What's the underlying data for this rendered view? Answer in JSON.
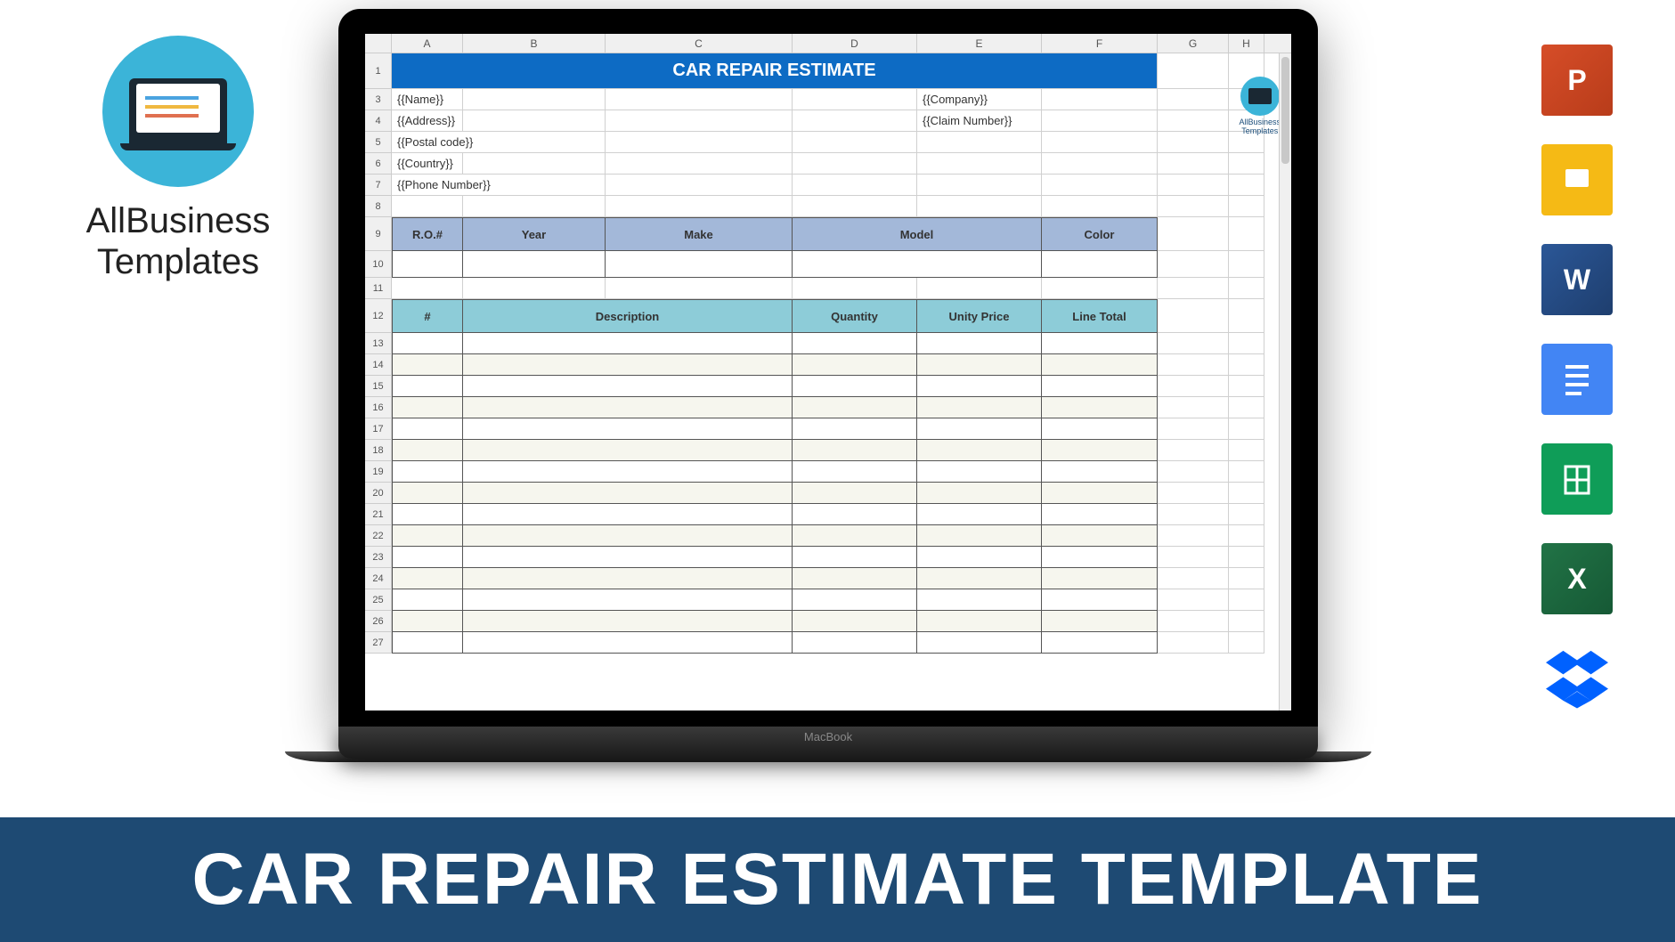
{
  "logo": {
    "line1": "AllBusiness",
    "line2": "Templates"
  },
  "appIcons": {
    "ppt": "P",
    "slides": "",
    "word": "W",
    "docs": "",
    "sheets": "",
    "excel": "X",
    "dropbox": ""
  },
  "laptop": {
    "brand": "MacBook"
  },
  "spreadsheet": {
    "columns": [
      "A",
      "B",
      "C",
      "D",
      "E",
      "F",
      "G",
      "H"
    ],
    "title": "CAR REPAIR ESTIMATE",
    "info": {
      "name": "{{Name}}",
      "address": "{{Address}}",
      "postal": "{{Postal code}}",
      "country": "{{Country}}",
      "phone": "{{Phone Number}}",
      "company": "{{Company}}",
      "claim": "{{Claim Number}}"
    },
    "vehicleHeaders": {
      "ro": "R.O.#",
      "year": "Year",
      "make": "Make",
      "model": "Model",
      "color": "Color"
    },
    "itemHeaders": {
      "num": "#",
      "desc": "Description",
      "qty": "Quantity",
      "price": "Unity Price",
      "total": "Line Total"
    },
    "rowNums": [
      1,
      3,
      4,
      5,
      6,
      7,
      8,
      9,
      10,
      11,
      12,
      13,
      14,
      15,
      16,
      17,
      18,
      19,
      20,
      21,
      22,
      23,
      24,
      25,
      26,
      27
    ],
    "watermark": "AllBusiness\nTemplates"
  },
  "banner": "CAR REPAIR ESTIMATE TEMPLATE",
  "colors": {
    "titleBar": "#0d6bc4",
    "headerBlue": "#a3b8d9",
    "headerTeal": "#8dccd8",
    "banner": "#1e4a73",
    "logoCircle": "#3bb4d8"
  }
}
